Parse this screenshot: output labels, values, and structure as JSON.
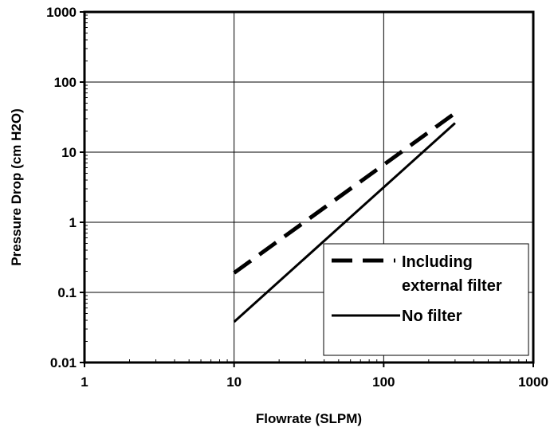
{
  "chart_data": {
    "type": "line",
    "title": "",
    "xlabel": "Flowrate (SLPM)",
    "ylabel": "Pressure Drop (cm H2O)",
    "x_scale": "log",
    "y_scale": "log",
    "xlim": [
      1,
      1000
    ],
    "ylim": [
      0.01,
      1000
    ],
    "x_ticks": [
      "1",
      "10",
      "100",
      "1000"
    ],
    "y_ticks": [
      "0.01",
      "0.1",
      "1",
      "10",
      "100",
      "1000"
    ],
    "grid": true,
    "legend_position": "bottom-right",
    "series": [
      {
        "name": "Including external filter",
        "legend_lines": [
          "Including",
          "external filter"
        ],
        "style": "dashed",
        "color": "#000000",
        "x": [
          10,
          300
        ],
        "y": [
          0.19,
          36
        ]
      },
      {
        "name": "No filter",
        "legend_lines": [
          "No filter"
        ],
        "style": "solid",
        "color": "#000000",
        "x": [
          10,
          300
        ],
        "y": [
          0.038,
          26
        ]
      }
    ]
  }
}
